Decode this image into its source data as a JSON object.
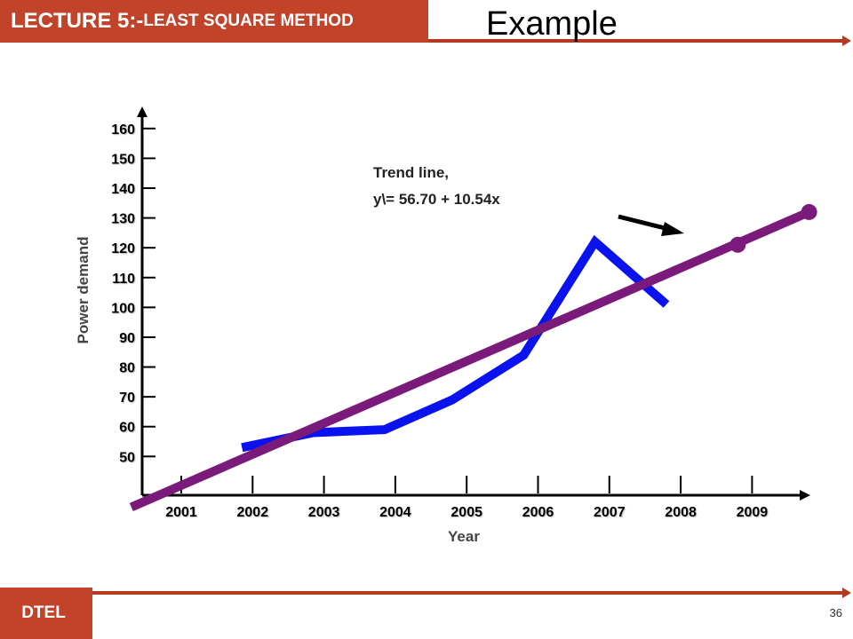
{
  "header": {
    "lecture_lead": "LECTURE 5:-",
    "lecture_rest": "LEAST SQUARE METHOD",
    "title": "Example"
  },
  "footer": {
    "org": "DTEL",
    "page_number": "36"
  },
  "colors": {
    "header_bg": "#C0432A",
    "accent_line": "#B23A22",
    "actual_series": "#0A12F0",
    "trend_series": "#7A1A7A"
  },
  "chart_data": {
    "type": "line",
    "xlabel": "Year",
    "ylabel": "Power demand",
    "categories": [
      "2001",
      "2002",
      "2003",
      "2004",
      "2005",
      "2006",
      "2007",
      "2008",
      "2009"
    ],
    "yticks": [
      50,
      60,
      70,
      80,
      90,
      100,
      110,
      120,
      130,
      140,
      150,
      160
    ],
    "ylim": [
      37,
      165
    ],
    "series": [
      {
        "style": "actual",
        "points": [
          [
            0.85,
            53
          ],
          [
            1.85,
            58
          ],
          [
            2.85,
            59
          ],
          [
            3.8,
            69
          ],
          [
            4.8,
            84
          ],
          [
            5.8,
            122
          ],
          [
            6.8,
            101
          ]
        ]
      },
      {
        "style": "trend",
        "points": [
          [
            -0.7,
            33
          ],
          [
            8.8,
            132
          ]
        ],
        "markers": [
          [
            7.8,
            121
          ],
          [
            8.8,
            132
          ]
        ]
      }
    ],
    "annotation": {
      "line1": "Trend line,",
      "line2": "y\\= 56.70 + 10.54x"
    }
  }
}
